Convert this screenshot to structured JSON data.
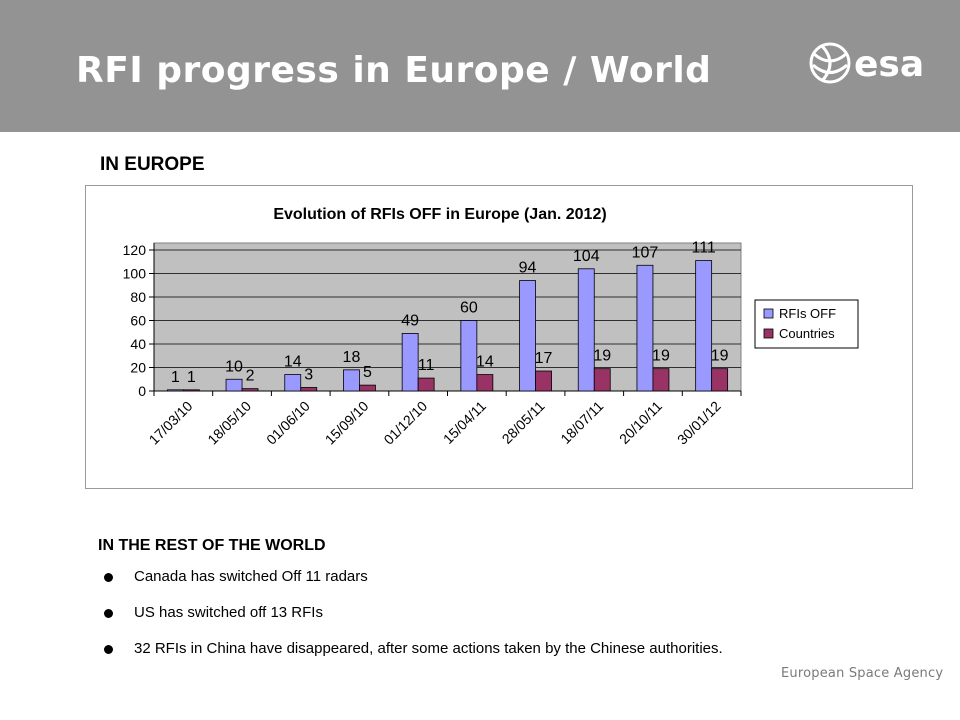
{
  "header": {
    "title": "RFI progress in Europe / World",
    "logo_text": "esa",
    "background_color": "#939393"
  },
  "europe": {
    "heading": "IN EUROPE"
  },
  "chart_data": {
    "type": "bar",
    "title": "Evolution of RFIs OFF in Europe (Jan. 2012)",
    "categories": [
      "17/03/10",
      "18/05/10",
      "01/06/10",
      "15/09/10",
      "01/12/10",
      "15/04/11",
      "28/05/11",
      "18/07/11",
      "20/10/11",
      "30/01/12"
    ],
    "series": [
      {
        "name": "RFIs OFF",
        "color": "#9999ff",
        "values": [
          1,
          10,
          14,
          18,
          49,
          60,
          94,
          104,
          107,
          111
        ]
      },
      {
        "name": "Countries",
        "color": "#993366",
        "values": [
          1,
          2,
          3,
          5,
          11,
          14,
          17,
          19,
          19,
          19
        ]
      }
    ],
    "ylim": [
      0,
      120
    ],
    "yticks": [
      "0",
      "20",
      "40",
      "60",
      "80",
      "100",
      "120"
    ],
    "grid": true,
    "plot_background": "#c0c0c0",
    "legend_position": "right"
  },
  "world": {
    "heading": "IN THE REST OF THE WORLD",
    "bullets": [
      "Canada has switched Off 11 radars",
      "US has switched off 13 RFIs",
      "32 RFIs in China have disappeared, after some actions taken by the Chinese authorities."
    ]
  },
  "footer": {
    "brand": "European Space Agency"
  }
}
